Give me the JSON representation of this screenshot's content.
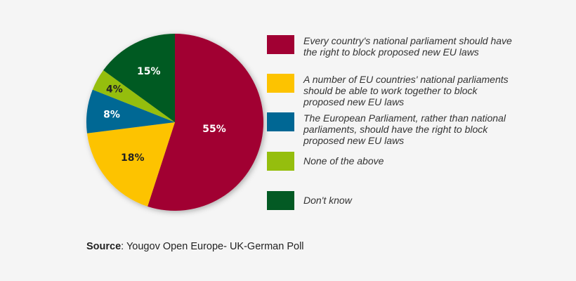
{
  "chart_data": {
    "type": "pie",
    "start": "top",
    "direction": "clockwise",
    "slices": [
      {
        "label": "Every country's national parliament should have the right to block proposed new EU laws",
        "value": 55,
        "value_label": "55%",
        "color": "#a10033",
        "text_color": "#ffffff"
      },
      {
        "label": "A number of EU countries' national parliaments should be able to work together to block proposed new EU laws",
        "value": 18,
        "value_label": "18%",
        "color": "#fdc300",
        "text_color": "#222222"
      },
      {
        "label": "The European Parliament, rather than national parliaments, should have the right to block proposed new EU laws",
        "value": 8,
        "value_label": "8%",
        "color": "#006794",
        "text_color": "#ffffff"
      },
      {
        "label": "None of the above",
        "value": 4,
        "value_label": "4%",
        "color": "#95be0e",
        "text_color": "#222222"
      },
      {
        "label": "Don't know",
        "value": 15,
        "value_label": "15%",
        "color": "#035a24",
        "text_color": "#ffffff"
      }
    ],
    "legend_placement": "right"
  },
  "source": {
    "prefix": "Source",
    "text": ": Yougov Open Europe- UK-German Poll"
  }
}
